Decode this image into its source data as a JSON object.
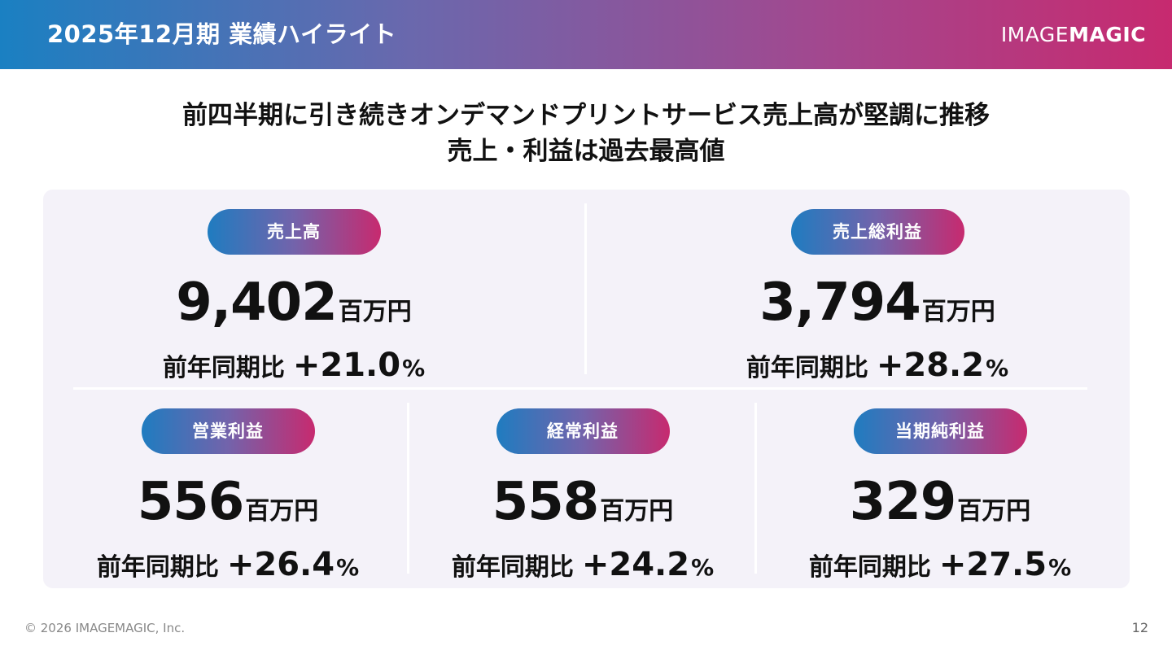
{
  "header": {
    "title": "2025年12月期 業績ハイライト",
    "logo_light": "IMAGE",
    "logo_heavy": "MAGIC"
  },
  "headline": {
    "line1": "前四半期に引き続きオンデマンドプリントサービス売上高が堅調に推移",
    "line2": "売上・利益は過去最高値"
  },
  "metrics": [
    {
      "label": "売上高",
      "value": "9,402",
      "unit": "百万円",
      "yoy_label": "前年同期比",
      "yoy_value": "+21.0",
      "yoy_unit": "%"
    },
    {
      "label": "売上総利益",
      "value": "3,794",
      "unit": "百万円",
      "yoy_label": "前年同期比",
      "yoy_value": "+28.2",
      "yoy_unit": "%"
    },
    {
      "label": "営業利益",
      "value": "556",
      "unit": "百万円",
      "yoy_label": "前年同期比",
      "yoy_value": "+26.4",
      "yoy_unit": "%"
    },
    {
      "label": "経常利益",
      "value": "558",
      "unit": "百万円",
      "yoy_label": "前年同期比",
      "yoy_value": "+24.2",
      "yoy_unit": "%"
    },
    {
      "label": "当期純利益",
      "value": "329",
      "unit": "百万円",
      "yoy_label": "前年同期比",
      "yoy_value": "+27.5",
      "yoy_unit": "%"
    }
  ],
  "footer": {
    "copyright": "© 2026 IMAGEMAGIC, Inc.",
    "page_number": "12"
  },
  "colors": {
    "header_gradient_start": "#1a80c2",
    "header_gradient_end": "#c72a6f",
    "panel_background": "#f4f2f9",
    "text": "#111111"
  }
}
